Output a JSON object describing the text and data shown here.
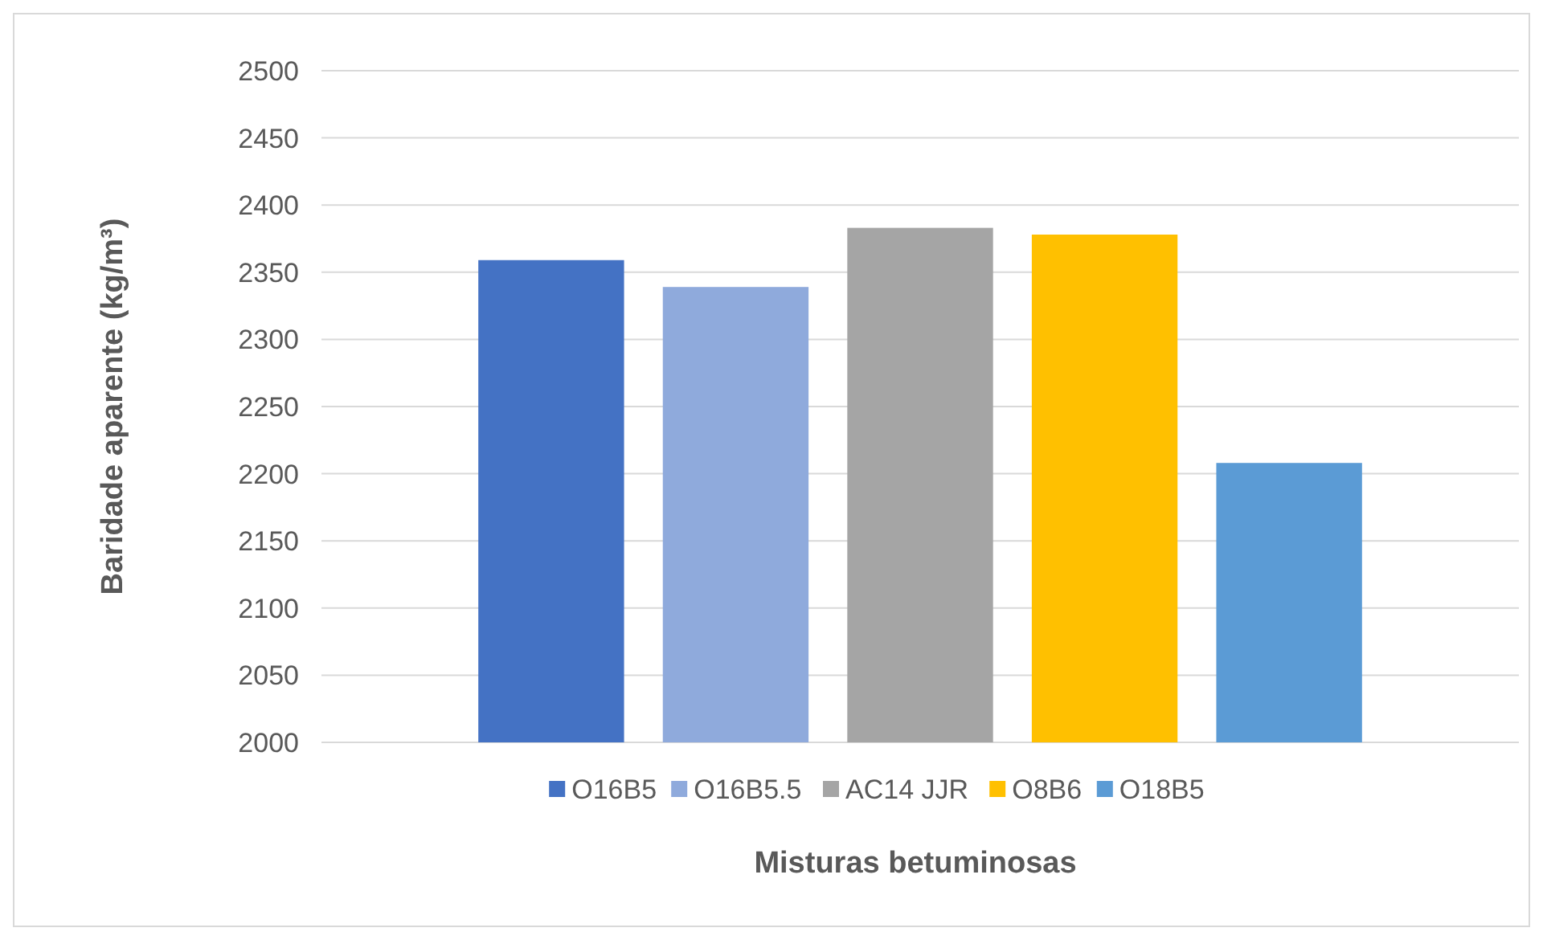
{
  "chart_data": {
    "type": "bar",
    "categories": [
      null
    ],
    "xlabel": "Misturas betuminosas",
    "ylabel": "Baridade aparente (kg/m³)",
    "ylim": [
      2000,
      2500
    ],
    "yticks": [
      2000,
      2050,
      2100,
      2150,
      2200,
      2250,
      2300,
      2350,
      2400,
      2450,
      2500
    ],
    "grid": "y",
    "legend": "bottom",
    "series": [
      {
        "name": "O16B5",
        "color": "#4472c4",
        "values": [
          2359
        ]
      },
      {
        "name": "O16B5.5",
        "color": "#8faadc",
        "values": [
          2339
        ]
      },
      {
        "name": "AC14 JJR",
        "color": "#a5a5a5",
        "values": [
          2383
        ]
      },
      {
        "name": "O8B6",
        "color": "#ffc000",
        "values": [
          2378
        ]
      },
      {
        "name": "O18B5",
        "color": "#5b9bd5",
        "values": [
          2208
        ]
      }
    ]
  }
}
